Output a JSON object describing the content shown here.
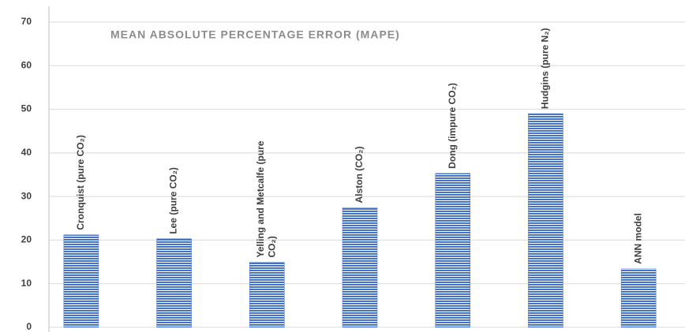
{
  "chart_data": {
    "type": "bar",
    "title": "MEAN ABSOLUTE PERCENTAGE ERROR (MAPE)",
    "categories": [
      "Cronquist (pure CO₂)",
      "Lee (pure CO₂)",
      "Yelling and Metcalfe (pure CO₂)",
      "Alston (CO₂)",
      "Dong (impure CO₂)",
      "Hudgins (pure N₂)",
      "ANN model"
    ],
    "values": [
      21.2,
      20.3,
      14.9,
      27.4,
      35.3,
      49,
      13.4
    ],
    "color": "#4472c4",
    "ylim": [
      0,
      70
    ],
    "yticks": [
      0,
      10,
      20,
      30,
      40,
      50,
      60,
      70
    ],
    "grid": true
  }
}
